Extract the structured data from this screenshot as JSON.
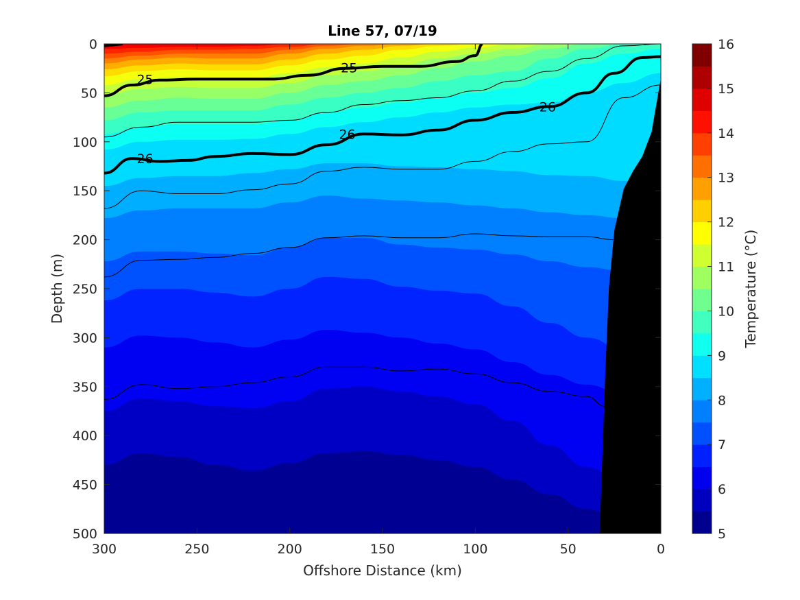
{
  "chart_data": {
    "type": "contour",
    "title": "Line 57, 07/19",
    "xlabel": "Offshore Distance (km)",
    "ylabel": "Depth (m)",
    "xlim": [
      300,
      0
    ],
    "ylim": [
      500,
      0
    ],
    "y_reversed": true,
    "x_reversed": true,
    "xticks": [
      300,
      250,
      200,
      150,
      100,
      50,
      0
    ],
    "yticks": [
      0,
      50,
      100,
      150,
      200,
      250,
      300,
      350,
      400,
      450,
      500
    ],
    "colorbar": {
      "label": "Temperature (°C)",
      "range": [
        5,
        16
      ],
      "ticks": [
        5,
        6,
        7,
        8,
        9,
        10,
        11,
        12,
        13,
        14,
        15,
        16
      ],
      "colormap": "jet",
      "colors": [
        "#00008f",
        "#0000bf",
        "#0000ef",
        "#0020ff",
        "#0050ff",
        "#0080ff",
        "#00b0ff",
        "#00dfff",
        "#10ffef",
        "#40ffbf",
        "#70ff8f",
        "#9fff60",
        "#cfff30",
        "#ffff00",
        "#ffcf00",
        "#ff9f00",
        "#ff7000",
        "#ff4000",
        "#ff1000",
        "#df0000",
        "#af0000",
        "#800000"
      ]
    },
    "temperature_isotherms": [
      {
        "value": 5.5,
        "depth": [
          430,
          418,
          422,
          430,
          436,
          428,
          418,
          416,
          420,
          425,
          432,
          445,
          460,
          475,
          490,
          500
        ]
      },
      {
        "value": 6.0,
        "depth": [
          375,
          362,
          365,
          370,
          372,
          365,
          352,
          350,
          355,
          360,
          368,
          385,
          410,
          432,
          450,
          460
        ]
      },
      {
        "value": 6.5,
        "depth": [
          310,
          298,
          300,
          305,
          310,
          302,
          292,
          295,
          300,
          306,
          312,
          325,
          338,
          348,
          358,
          365
        ]
      },
      {
        "value": 7.0,
        "depth": [
          262,
          250,
          250,
          254,
          258,
          250,
          238,
          240,
          248,
          252,
          255,
          268,
          285,
          300,
          312,
          320
        ]
      },
      {
        "value": 7.5,
        "depth": [
          222,
          212,
          212,
          214,
          216,
          208,
          198,
          198,
          205,
          208,
          210,
          215,
          222,
          228,
          232,
          235
        ]
      },
      {
        "value": 8.0,
        "depth": [
          178,
          170,
          168,
          168,
          168,
          162,
          155,
          158,
          160,
          162,
          165,
          168,
          172,
          175,
          178,
          180
        ]
      },
      {
        "value": 8.5,
        "depth": [
          145,
          137,
          135,
          135,
          132,
          128,
          122,
          122,
          125,
          126,
          128,
          130,
          134,
          135,
          140,
          140
        ]
      },
      {
        "value": 9.0,
        "depth": [
          108,
          100,
          98,
          98,
          97,
          92,
          85,
          80,
          75,
          70,
          65,
          62,
          60,
          50,
          40,
          30
        ]
      },
      {
        "value": 9.5,
        "depth": [
          92,
          85,
          82,
          82,
          82,
          78,
          70,
          65,
          60,
          55,
          50,
          45,
          35,
          20,
          10,
          5
        ]
      },
      {
        "value": 10.0,
        "depth": [
          78,
          70,
          68,
          68,
          68,
          62,
          55,
          50,
          45,
          38,
          32,
          28,
          15,
          5,
          0,
          0
        ]
      },
      {
        "value": 10.5,
        "depth": [
          65,
          58,
          55,
          56,
          56,
          50,
          42,
          38,
          32,
          25,
          18,
          12,
          5,
          0,
          0,
          0
        ]
      },
      {
        "value": 11.0,
        "depth": [
          52,
          46,
          44,
          45,
          45,
          40,
          32,
          28,
          22,
          15,
          10,
          5,
          0,
          0,
          0,
          0
        ]
      },
      {
        "value": 11.5,
        "depth": [
          42,
          36,
          34,
          35,
          35,
          30,
          24,
          20,
          14,
          8,
          4,
          0,
          0,
          0,
          0,
          0
        ]
      },
      {
        "value": 12.0,
        "depth": [
          33,
          28,
          26,
          27,
          27,
          22,
          16,
          12,
          6,
          2,
          0,
          0,
          0,
          0,
          0,
          0
        ]
      },
      {
        "value": 12.5,
        "depth": [
          26,
          22,
          20,
          21,
          21,
          16,
          10,
          6,
          2,
          0,
          0,
          0,
          0,
          0,
          0,
          0
        ]
      },
      {
        "value": 13.0,
        "depth": [
          20,
          16,
          14,
          15,
          15,
          10,
          5,
          2,
          0,
          0,
          0,
          0,
          0,
          0,
          0,
          0
        ]
      },
      {
        "value": 13.5,
        "depth": [
          15,
          12,
          10,
          10,
          10,
          6,
          2,
          0,
          0,
          0,
          0,
          0,
          0,
          0,
          0,
          0
        ]
      },
      {
        "value": 14.0,
        "depth": [
          10,
          8,
          6,
          6,
          5,
          3,
          0,
          0,
          0,
          0,
          0,
          0,
          0,
          0,
          0,
          0
        ]
      },
      {
        "value": 14.5,
        "depth": [
          5,
          4,
          3,
          3,
          2,
          0,
          0,
          0,
          0,
          0,
          0,
          0,
          0,
          0,
          0,
          0
        ]
      }
    ],
    "isotherm_x": [
      300,
      280,
      260,
      240,
      220,
      200,
      180,
      160,
      140,
      120,
      100,
      80,
      60,
      40,
      20,
      0
    ],
    "density_contours": [
      {
        "value": "25",
        "label": "25",
        "bold": true,
        "x": [
          300,
          285,
          270,
          250,
          230,
          210,
          190,
          170,
          150,
          130,
          110,
          100,
          96
        ],
        "depth": [
          53,
          42,
          37,
          36,
          36,
          36,
          32,
          25,
          23,
          23,
          18,
          12,
          0
        ]
      },
      {
        "value": "26",
        "label": "26",
        "bold": true,
        "x": [
          300,
          285,
          270,
          255,
          240,
          220,
          200,
          180,
          160,
          140,
          120,
          100,
          80,
          60,
          40,
          25,
          10,
          0
        ],
        "depth": [
          132,
          117,
          120,
          119,
          115,
          112,
          113,
          103,
          92,
          93,
          88,
          78,
          70,
          64,
          50,
          30,
          14,
          13
        ]
      }
    ],
    "contour_labels": [
      {
        "text": "25",
        "x": 278,
        "depth": 36
      },
      {
        "text": "25",
        "x": 168,
        "depth": 24
      },
      {
        "text": "26",
        "x": 278,
        "depth": 117
      },
      {
        "text": "26",
        "x": 169,
        "depth": 92
      },
      {
        "text": "26",
        "x": 61,
        "depth": 64
      }
    ],
    "thin_contours": [
      {
        "x": [
          300,
          280,
          260,
          240,
          220,
          200,
          180,
          160,
          140,
          120,
          100,
          80,
          60,
          40,
          20,
          0
        ],
        "depth": [
          95,
          85,
          80,
          80,
          80,
          78,
          70,
          62,
          58,
          55,
          48,
          38,
          28,
          15,
          2,
          0
        ]
      },
      {
        "x": [
          300,
          280,
          260,
          240,
          220,
          200,
          180,
          160,
          140,
          120,
          100,
          80,
          60,
          40,
          20,
          0
        ],
        "depth": [
          168,
          150,
          153,
          153,
          149,
          143,
          130,
          126,
          128,
          128,
          120,
          110,
          102,
          100,
          55,
          42
        ]
      },
      {
        "x": [
          300,
          280,
          260,
          240,
          220,
          200,
          180,
          160,
          140,
          120,
          100,
          80,
          60,
          40,
          25
        ],
        "depth": [
          238,
          221,
          220,
          218,
          214,
          208,
          198,
          196,
          198,
          198,
          194,
          196,
          197,
          197,
          200
        ]
      },
      {
        "x": [
          300,
          280,
          260,
          240,
          220,
          200,
          180,
          160,
          140,
          120,
          100,
          80,
          60,
          40,
          30
        ],
        "depth": [
          363,
          348,
          352,
          350,
          346,
          340,
          330,
          330,
          334,
          332,
          337,
          346,
          355,
          360,
          370
        ]
      }
    ],
    "shelf_bathymetry": {
      "x": [
        33,
        30,
        28,
        25,
        20,
        15,
        10,
        5,
        0
      ],
      "depth": [
        500,
        340,
        250,
        190,
        148,
        130,
        115,
        90,
        35
      ]
    }
  }
}
